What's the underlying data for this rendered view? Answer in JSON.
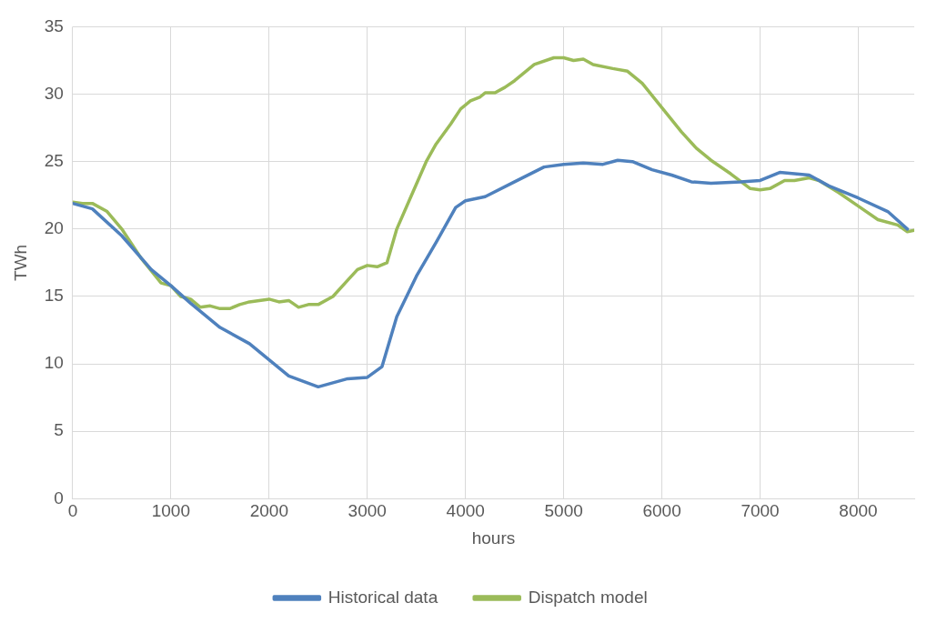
{
  "chart_data": {
    "type": "line",
    "xlabel": "hours",
    "ylabel": "TWh",
    "xlim": [
      0,
      8570
    ],
    "xticks": [
      0,
      1000,
      2000,
      3000,
      4000,
      5000,
      6000,
      7000,
      8000
    ],
    "ylim": [
      0,
      35
    ],
    "yticks": [
      0,
      5,
      10,
      15,
      20,
      25,
      30,
      35
    ],
    "grid": true,
    "legend": "bottom",
    "marker": "none",
    "series": [
      {
        "name": "Historical data",
        "color": "#4f81bd",
        "x": [
          0,
          200,
          500,
          800,
          1000,
          1200,
          1500,
          1800,
          2000,
          2200,
          2500,
          2800,
          3000,
          3150,
          3300,
          3500,
          3700,
          3900,
          4000,
          4200,
          4500,
          4800,
          5000,
          5200,
          5400,
          5550,
          5700,
          5900,
          6100,
          6300,
          6500,
          6800,
          7000,
          7200,
          7500,
          7700,
          8000,
          8300,
          8500
        ],
        "values": [
          21.9,
          21.5,
          19.5,
          17.0,
          15.8,
          14.5,
          12.7,
          11.5,
          10.3,
          9.1,
          8.3,
          8.9,
          9.0,
          9.8,
          13.5,
          16.5,
          19.0,
          21.6,
          22.1,
          22.4,
          23.5,
          24.6,
          24.8,
          24.9,
          24.8,
          25.1,
          25.0,
          24.4,
          24.0,
          23.5,
          23.4,
          23.5,
          23.6,
          24.2,
          24.0,
          23.2,
          22.3,
          21.3,
          20.0
        ]
      },
      {
        "name": "Dispatch model",
        "color": "#9bbb59",
        "x": [
          0,
          100,
          200,
          350,
          500,
          700,
          900,
          1000,
          1100,
          1200,
          1300,
          1400,
          1500,
          1600,
          1700,
          1800,
          2000,
          2100,
          2200,
          2300,
          2400,
          2500,
          2650,
          2800,
          2900,
          3000,
          3100,
          3200,
          3300,
          3450,
          3600,
          3700,
          3850,
          3950,
          4050,
          4150,
          4200,
          4300,
          4400,
          4500,
          4700,
          4900,
          5000,
          5100,
          5200,
          5300,
          5500,
          5650,
          5800,
          6000,
          6200,
          6350,
          6500,
          6700,
          6900,
          7000,
          7100,
          7250,
          7350,
          7500,
          7600,
          7800,
          8000,
          8200,
          8400,
          8500,
          8570
        ],
        "values": [
          22.0,
          21.9,
          21.9,
          21.3,
          20.0,
          17.8,
          16.0,
          15.8,
          15.0,
          14.8,
          14.2,
          14.3,
          14.1,
          14.1,
          14.4,
          14.6,
          14.8,
          14.6,
          14.7,
          14.2,
          14.4,
          14.4,
          15.0,
          16.2,
          17.0,
          17.3,
          17.2,
          17.5,
          20.0,
          22.5,
          25.0,
          26.3,
          27.8,
          28.9,
          29.5,
          29.8,
          30.1,
          30.1,
          30.5,
          31.0,
          32.2,
          32.7,
          32.7,
          32.5,
          32.6,
          32.2,
          31.9,
          31.7,
          30.8,
          29.0,
          27.2,
          26.0,
          25.1,
          24.1,
          23.0,
          22.9,
          23.0,
          23.6,
          23.6,
          23.8,
          23.6,
          22.7,
          21.7,
          20.7,
          20.3,
          19.8,
          19.9
        ]
      }
    ]
  }
}
